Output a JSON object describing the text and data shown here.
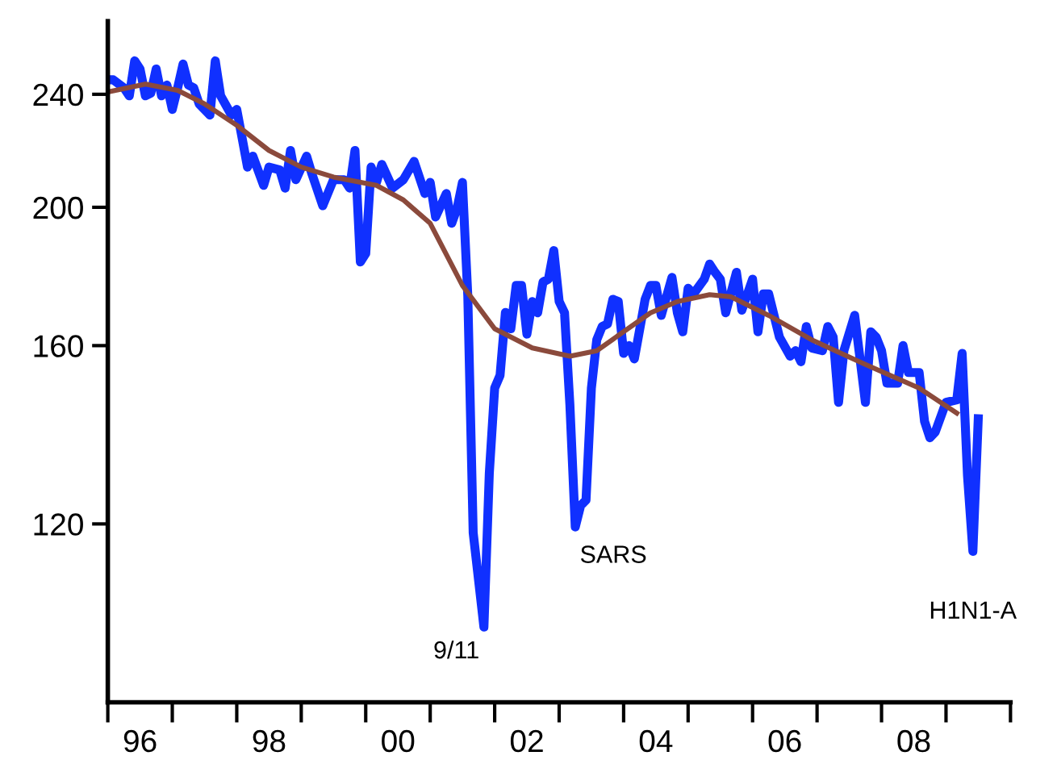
{
  "chart_data": {
    "type": "line",
    "log": "y",
    "grid": false,
    "legend": false,
    "marker": "none",
    "line_style": "solid",
    "xlim": [
      "1996-01",
      "2010-01"
    ],
    "ylim": [
      90,
      270
    ],
    "yticks": [
      120,
      160,
      200,
      240
    ],
    "xticks": [
      {
        "value": "1996-01",
        "label": null
      },
      {
        "value": "1997-01",
        "label": null
      },
      {
        "value": "1998-01",
        "label": null
      },
      {
        "value": "1999-01",
        "label": null
      },
      {
        "value": "2000-01",
        "label": null
      },
      {
        "value": "2001-01",
        "label": null
      },
      {
        "value": "2002-01",
        "label": null
      },
      {
        "value": "2003-01",
        "label": null
      },
      {
        "value": "2004-01",
        "label": null
      },
      {
        "value": "2005-01",
        "label": null
      },
      {
        "value": "2006-01",
        "label": null
      },
      {
        "value": "2007-01",
        "label": null
      },
      {
        "value": "2008-01",
        "label": null
      },
      {
        "value": "2009-01",
        "label": null
      },
      {
        "value": "2010-01",
        "label": null
      },
      {
        "value": "1996-07",
        "label": "96"
      },
      {
        "value": "1998-07",
        "label": "98"
      },
      {
        "value": "2000-07",
        "label": "00"
      },
      {
        "value": "2002-07",
        "label": "02"
      },
      {
        "value": "2004-07",
        "label": "04"
      },
      {
        "value": "2006-07",
        "label": "06"
      },
      {
        "value": "2008-07",
        "label": "08"
      }
    ],
    "series": [
      {
        "color": "#1030ff",
        "x": [
          "1996-01",
          "1996-02",
          "1996-04",
          "1996-05",
          "1996-06",
          "1996-07",
          "1996-08",
          "1996-09",
          "1996-10",
          "1996-11",
          "1996-12",
          "1997-01",
          "1997-02",
          "1997-03",
          "1997-04",
          "1997-05",
          "1997-06",
          "1997-08",
          "1997-09",
          "1997-10",
          "1997-12",
          "1998-01",
          "1998-02",
          "1998-03",
          "1998-04",
          "1998-06",
          "1998-07",
          "1998-09",
          "1998-10",
          "1998-11",
          "1998-12",
          "1999-02",
          "1999-03",
          "1999-05",
          "1999-07",
          "1999-09",
          "1999-10",
          "1999-11",
          "1999-12",
          "2000-01",
          "2000-02",
          "2000-03",
          "2000-04",
          "2000-06",
          "2000-08",
          "2000-10",
          "2000-12",
          "2001-01",
          "2001-02",
          "2001-04",
          "2001-05",
          "2001-06",
          "2001-07",
          "2001-08",
          "2001-09",
          "2001-11",
          "2001-12",
          "2002-01",
          "2002-02",
          "2002-03",
          "2002-04",
          "2002-05",
          "2002-06",
          "2002-07",
          "2002-08",
          "2002-09",
          "2002-10",
          "2002-11",
          "2002-12",
          "2003-01",
          "2003-02",
          "2003-03",
          "2003-04",
          "2003-05",
          "2003-06",
          "2003-07",
          "2003-08",
          "2003-09",
          "2003-10",
          "2003-11",
          "2003-12",
          "2004-01",
          "2004-02",
          "2004-03",
          "2004-05",
          "2004-06",
          "2004-07",
          "2004-08",
          "2004-10",
          "2004-11",
          "2004-12",
          "2005-01",
          "2005-02",
          "2005-04",
          "2005-05",
          "2005-06",
          "2005-07",
          "2005-08",
          "2005-10",
          "2005-11",
          "2006-01",
          "2006-02",
          "2006-03",
          "2006-04",
          "2006-06",
          "2006-08",
          "2006-09",
          "2006-10",
          "2006-11",
          "2006-12",
          "2007-02",
          "2007-03",
          "2007-04",
          "2007-05",
          "2007-06",
          "2007-08",
          "2007-10",
          "2007-11",
          "2007-12",
          "2008-01",
          "2008-02",
          "2008-04",
          "2008-05",
          "2008-06",
          "2008-08",
          "2008-09",
          "2008-10",
          "2008-11",
          "2009-01",
          "2009-03",
          "2009-04",
          "2009-05",
          "2009-06",
          "2009-07"
        ],
        "values": [
          245.7,
          245.7,
          242.5,
          239.4,
          253.3,
          250,
          239.4,
          240.4,
          250,
          239.4,
          243.6,
          234.2,
          242.5,
          252,
          243.6,
          242.5,
          236.3,
          232.1,
          253.3,
          239.4,
          232.1,
          234.2,
          223.6,
          213.4,
          217.2,
          207.2,
          213.4,
          212.4,
          206.3,
          219.2,
          209.1,
          217.2,
          211,
          200.5,
          209.1,
          209.1,
          206.3,
          219.2,
          183.1,
          185.6,
          213.4,
          208.2,
          214.3,
          206.3,
          209.1,
          215.4,
          204.5,
          208.2,
          196.9,
          204.5,
          194.9,
          199.6,
          208.2,
          173.3,
          118.3,
          101.6,
          130.2,
          149.4,
          152.5,
          168.8,
          164.4,
          176.3,
          176.3,
          163,
          171.8,
          168.7,
          177.3,
          178.1,
          186.5,
          171.8,
          168.7,
          145.4,
          119.4,
          123.6,
          124.7,
          149.4,
          161.5,
          165,
          165.7,
          172.4,
          171.8,
          158,
          160,
          156.6,
          172.4,
          176.3,
          176.3,
          168,
          178.6,
          168.7,
          163.6,
          175.5,
          173.9,
          178.1,
          182.5,
          180.1,
          178.1,
          168.7,
          180.1,
          169.4,
          178.1,
          163.6,
          173.9,
          173.9,
          162.2,
          157.3,
          158.7,
          155.9,
          165,
          159.4,
          158.7,
          165,
          162.2,
          146,
          158.7,
          168,
          146,
          163.6,
          162.2,
          158.7,
          150.6,
          150.6,
          160,
          153.2,
          153.2,
          141.6,
          137.9,
          139.2,
          146,
          146.6,
          158,
          129.7,
          114.8,
          142.2
        ]
      },
      {
        "color": "#8b4a3c",
        "x": [
          "1996-01",
          "1996-08",
          "1997-02",
          "1997-07",
          "1998-01",
          "1998-07",
          "1999-01",
          "1999-07",
          "2000-03",
          "2000-08",
          "2001-01",
          "2001-07",
          "2002-01",
          "2002-08",
          "2003-03",
          "2003-08",
          "2004-06",
          "2004-11",
          "2005-05",
          "2005-09",
          "2006-04",
          "2006-12",
          "2007-10",
          "2008-08",
          "2009-03"
        ],
        "values": [
          240.9,
          244,
          241.5,
          236.3,
          228.3,
          219.2,
          213.4,
          210,
          207.2,
          202.4,
          194.9,
          176.3,
          164.4,
          159.4,
          157.3,
          158.7,
          168.7,
          171.8,
          173.7,
          173.1,
          168,
          161.5,
          155.2,
          149.4,
          143.5
        ]
      }
    ],
    "annotations": [
      {
        "text": "9/11",
        "x": "2001-11",
        "y": 101.6
      },
      {
        "text": "SARS",
        "x": "2003-04",
        "y": 119.4
      },
      {
        "text": "H1N1-A",
        "x": "2009-06",
        "y": 114.8
      }
    ]
  }
}
